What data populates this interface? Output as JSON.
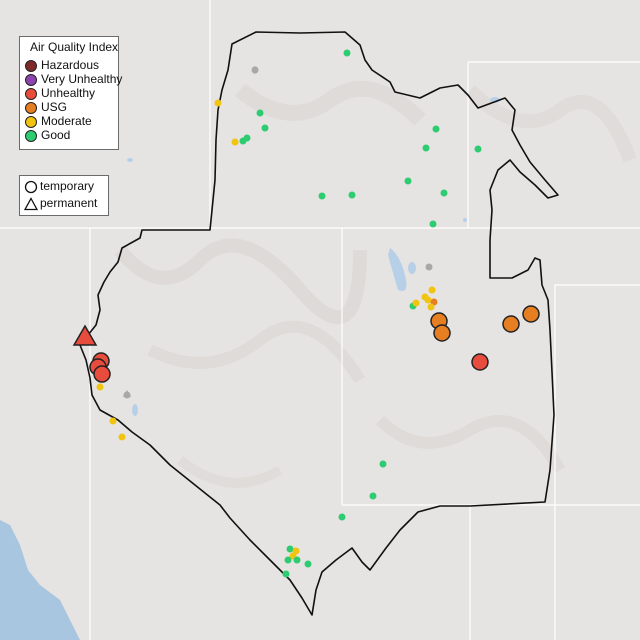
{
  "legend": {
    "title": "Air Quality Index",
    "categories": [
      {
        "label": "Hazardous",
        "color": "#7e2a2a"
      },
      {
        "label": "Very Unhealthy",
        "color": "#8e44ad"
      },
      {
        "label": "Unhealthy",
        "color": "#e74c3c"
      },
      {
        "label": "USG",
        "color": "#e67e22"
      },
      {
        "label": "Moderate",
        "color": "#f1c40f"
      },
      {
        "label": "Good",
        "color": "#2ecc71"
      }
    ]
  },
  "type_legend": {
    "items": [
      {
        "label": "temporary",
        "icon": "circle-icon"
      },
      {
        "label": "permanent",
        "icon": "triangle-icon"
      }
    ]
  },
  "colors": {
    "land": "#e6e4e2",
    "water": "#a9c6e0",
    "lake": "#b7d0e8",
    "border": "#111111",
    "state_line": "#ffffff"
  }
}
